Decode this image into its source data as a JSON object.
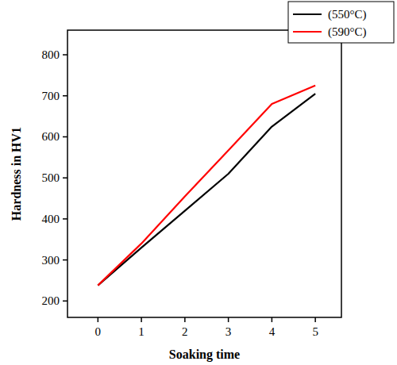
{
  "chart_data": {
    "type": "line",
    "x_label": "Soaking time",
    "y_label": "Hardness in HV1",
    "x": [
      0,
      1,
      2,
      3,
      4,
      5
    ],
    "series": [
      {
        "name": "(550°C)",
        "color": "#000000",
        "values": [
          238,
          330,
          420,
          510,
          625,
          705
        ]
      },
      {
        "name": "(590°C)",
        "color": "#ff0000",
        "values": [
          238,
          340,
          455,
          567,
          680,
          725
        ]
      }
    ],
    "xlim": [
      -0.7,
      5.6
    ],
    "xticks": [
      0,
      1,
      2,
      3,
      4,
      5
    ],
    "ylim": [
      160,
      860
    ],
    "yticks": [
      200,
      300,
      400,
      500,
      600,
      700,
      800
    ],
    "grid": false,
    "legend": "upper right"
  }
}
